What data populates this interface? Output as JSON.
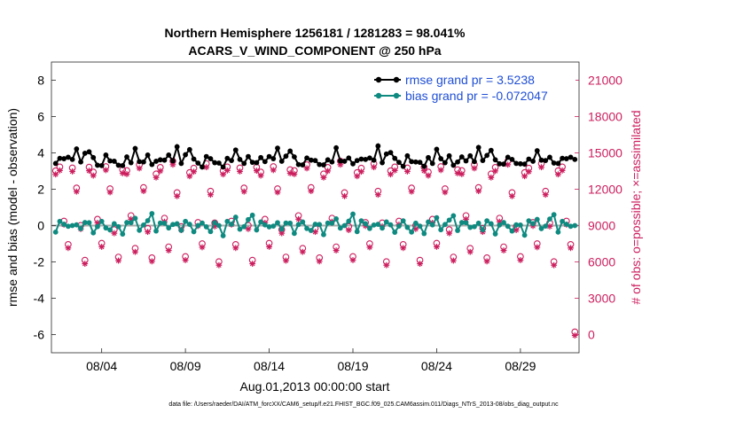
{
  "chart_data": {
    "type": "line",
    "title": [
      "Northern Hemisphere 1256181 / 1281283 = 98.041%",
      "ACARS_V_WIND_COMPONENT @ 250 hPa"
    ],
    "xlabel": "Aug.01,2013 00:00:00 start",
    "ylabel_left": "rmse and bias (model - observation)",
    "ylabel_right": "# of obs: o=possible; ×=assimilated",
    "footer": "data file: /Users/raeder/DAI/ATM_forcXX/CAM6_setup/f.e21.FHIST_BGC.f09_025.CAM6assim.011/Diags_NTrS_2013-08/obs_diag_output.nc",
    "xlim": [
      1,
      32.5
    ],
    "ylim_left": [
      -7,
      9
    ],
    "ylim_right": [
      -1500,
      22500
    ],
    "x_ticks": [
      {
        "value": 4,
        "label": "08/04"
      },
      {
        "value": 9,
        "label": "08/09"
      },
      {
        "value": 14,
        "label": "08/14"
      },
      {
        "value": 19,
        "label": "08/19"
      },
      {
        "value": 24,
        "label": "08/24"
      },
      {
        "value": 29,
        "label": "08/29"
      }
    ],
    "y_ticks_left": [
      {
        "value": -6,
        "label": "-6"
      },
      {
        "value": -4,
        "label": "-4"
      },
      {
        "value": -2,
        "label": "-2"
      },
      {
        "value": 0,
        "label": "0"
      },
      {
        "value": 2,
        "label": "2"
      },
      {
        "value": 4,
        "label": "4"
      },
      {
        "value": 6,
        "label": "6"
      },
      {
        "value": 8,
        "label": "8"
      }
    ],
    "y_ticks_right": [
      {
        "value": 0,
        "label": "0"
      },
      {
        "value": 3000,
        "label": "3000"
      },
      {
        "value": 6000,
        "label": "6000"
      },
      {
        "value": 9000,
        "label": "9000"
      },
      {
        "value": 12000,
        "label": "12000"
      },
      {
        "value": 15000,
        "label": "15000"
      },
      {
        "value": 18000,
        "label": "18000"
      },
      {
        "value": 21000,
        "label": "21000"
      }
    ],
    "legend": {
      "position": "top-right",
      "entries": [
        {
          "label": "rmse grand pr = 3.5238",
          "color": "#000000"
        },
        {
          "label": "bias grand pr = -0.072047",
          "color": "#0f8a80"
        }
      ]
    },
    "colors": {
      "rmse": "#000000",
      "bias": "#0f8a80",
      "obs": "#cc1f5e",
      "zero": "#aaaaaa",
      "legend_text": "#1f4fd6"
    },
    "x_start": 1.25,
    "x_step": 0.25,
    "rmse_start": [
      3.5,
      3.7,
      3.6,
      3.8,
      3.6,
      4.3,
      3.5,
      3.9,
      4.1,
      3.7,
      3.4,
      3.3,
      3.8,
      3.6,
      3.5,
      3.4,
      3.3,
      3.7,
      3.5,
      4.2,
      3.6,
      3.5,
      3.8,
      3.4
    ],
    "bias_start": [
      -0.3,
      0.2,
      0.1,
      -0.1,
      0.0,
      0.1,
      -0.2,
      0.2,
      0.1,
      -0.4,
      0.0,
      0.2,
      -0.1,
      -0.3,
      0.1,
      0.0,
      -0.5,
      0.2,
      0.1,
      0.4,
      -0.2,
      0.0,
      0.3,
      0.6
    ],
    "obs_pattern": [
      13300,
      13400,
      9300,
      7100,
      13800,
      11700,
      8700,
      6000
    ],
    "obs_offsets": [
      0,
      220,
      -150,
      120,
      -260,
      180,
      90,
      -80,
      300,
      -200
    ]
  }
}
